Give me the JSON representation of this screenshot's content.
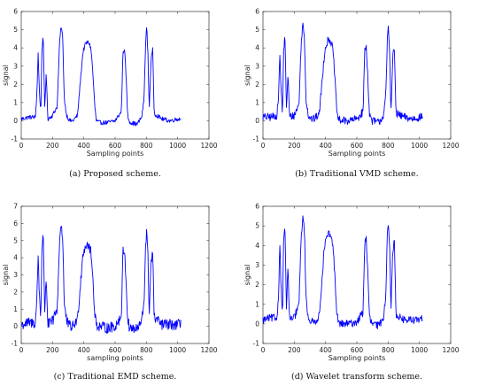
{
  "chart_data": [
    {
      "type": "line",
      "caption": "(a)  Proposed scheme.",
      "xlabel": "Sampling points",
      "ylabel": "signal",
      "xlim": [
        0,
        1200
      ],
      "ylim": [
        -1,
        6
      ],
      "xticks": [
        "0",
        "200",
        "400",
        "600",
        "800",
        "1000",
        "1200"
      ],
      "yticks": [
        "-1",
        "0",
        "1",
        "2",
        "3",
        "4",
        "5",
        "6"
      ],
      "grid": false,
      "color": "#0000ff",
      "noise": 0.12,
      "series": [
        {
          "x": [
            0,
            50,
            90,
            100,
            108,
            115,
            125,
            132,
            140,
            150,
            160,
            170,
            200,
            230,
            245,
            255,
            265,
            275,
            290,
            310,
            330,
            360,
            380,
            395,
            410,
            420,
            432,
            445,
            455,
            470,
            480,
            500,
            550,
            600,
            640,
            650,
            660,
            670,
            680,
            690,
            700,
            740,
            770,
            785,
            795,
            802,
            810,
            818,
            830,
            840,
            850,
            900,
            950,
            1000,
            1020
          ],
          "y": [
            0.1,
            0.2,
            0.2,
            1.5,
            3.7,
            1.8,
            0.4,
            3.9,
            4.6,
            0.8,
            2.6,
            0.1,
            0.3,
            0.8,
            4.3,
            5.2,
            4.6,
            1.2,
            0.3,
            0.0,
            0.0,
            0.3,
            2.4,
            3.8,
            4.2,
            4.3,
            4.3,
            4.0,
            3.0,
            0.8,
            0.0,
            -0.1,
            -0.1,
            0.0,
            0.5,
            3.7,
            4.0,
            2.5,
            0.3,
            0.0,
            -0.1,
            -0.2,
            0.2,
            1.2,
            4.3,
            5.2,
            3.6,
            0.6,
            3.4,
            3.9,
            0.4,
            0.1,
            0.0,
            0.1,
            0.1
          ]
        }
      ]
    },
    {
      "type": "line",
      "caption": "(b)  Traditional VMD scheme.",
      "xlabel": "Sampling points",
      "ylabel": "signal",
      "xlim": [
        0,
        1200
      ],
      "ylim": [
        -1,
        6
      ],
      "xticks": [
        "0",
        "200",
        "400",
        "600",
        "800",
        "1000",
        "1200"
      ],
      "yticks": [
        "-1",
        "0",
        "1",
        "2",
        "3",
        "4",
        "5",
        "6"
      ],
      "grid": false,
      "color": "#0000ff",
      "noise": 0.22,
      "series": [
        {
          "x": [
            0,
            50,
            90,
            100,
            108,
            115,
            125,
            132,
            140,
            150,
            160,
            170,
            200,
            230,
            245,
            255,
            265,
            275,
            290,
            310,
            330,
            360,
            380,
            395,
            410,
            420,
            432,
            445,
            455,
            470,
            480,
            500,
            550,
            600,
            640,
            650,
            660,
            670,
            680,
            690,
            700,
            740,
            770,
            785,
            795,
            802,
            810,
            818,
            830,
            840,
            850,
            900,
            950,
            1000,
            1020
          ],
          "y": [
            0.2,
            0.2,
            0.3,
            1.5,
            3.6,
            1.8,
            0.4,
            3.9,
            4.6,
            0.8,
            2.5,
            0.2,
            0.3,
            0.9,
            4.4,
            5.3,
            4.6,
            1.2,
            0.3,
            0.1,
            0.1,
            0.4,
            2.4,
            3.9,
            4.3,
            4.5,
            4.4,
            4.0,
            3.0,
            0.8,
            0.1,
            0.0,
            0.0,
            0.1,
            0.5,
            3.8,
            4.1,
            2.5,
            0.4,
            0.1,
            0.0,
            -0.1,
            0.3,
            1.3,
            4.4,
            5.2,
            3.6,
            0.6,
            3.5,
            4.0,
            0.4,
            0.2,
            0.1,
            0.2,
            0.2
          ]
        }
      ]
    },
    {
      "type": "line",
      "caption": "(c)  Traditional EMD scheme.",
      "xlabel": "sampling points",
      "ylabel": "signal",
      "xlim": [
        0,
        1200
      ],
      "ylim": [
        -1,
        7
      ],
      "xticks": [
        "0",
        "200",
        "400",
        "600",
        "800",
        "1000",
        "1200"
      ],
      "yticks": [
        "-1",
        "0",
        "1",
        "2",
        "3",
        "4",
        "5",
        "6",
        "7"
      ],
      "grid": false,
      "color": "#0000ff",
      "noise": 0.32,
      "series": [
        {
          "x": [
            0,
            50,
            90,
            100,
            108,
            115,
            125,
            132,
            140,
            150,
            160,
            170,
            200,
            230,
            245,
            255,
            265,
            275,
            290,
            310,
            330,
            360,
            380,
            395,
            410,
            420,
            432,
            445,
            455,
            470,
            480,
            500,
            550,
            600,
            640,
            650,
            660,
            670,
            680,
            690,
            700,
            740,
            770,
            785,
            795,
            802,
            810,
            818,
            830,
            840,
            850,
            900,
            950,
            1000,
            1020
          ],
          "y": [
            0.1,
            0.2,
            0.2,
            1.6,
            4.2,
            2.0,
            0.5,
            4.5,
            5.4,
            1.0,
            2.9,
            0.1,
            0.3,
            1.0,
            5.0,
            6.0,
            5.2,
            1.3,
            0.3,
            0.0,
            0.0,
            0.4,
            2.7,
            4.3,
            4.7,
            4.8,
            4.7,
            4.3,
            3.2,
            0.8,
            0.1,
            0.0,
            -0.1,
            0.0,
            0.6,
            4.3,
            4.5,
            2.7,
            0.4,
            0.0,
            -0.1,
            -0.2,
            0.3,
            1.4,
            4.8,
            5.5,
            4.0,
            0.7,
            3.9,
            4.3,
            0.5,
            0.1,
            0.1,
            0.1,
            0.1
          ]
        }
      ]
    },
    {
      "type": "line",
      "caption": "(d)  Wavelet transform scheme.",
      "xlabel": "Sampling points",
      "ylabel": "signal",
      "xlim": [
        0,
        1200
      ],
      "ylim": [
        -1,
        6
      ],
      "xticks": [
        "0",
        "200",
        "400",
        "600",
        "800",
        "1000",
        "1200"
      ],
      "yticks": [
        "-1",
        "0",
        "1",
        "2",
        "3",
        "4",
        "5",
        "6"
      ],
      "grid": false,
      "color": "#0000ff",
      "noise": 0.2,
      "series": [
        {
          "x": [
            0,
            50,
            90,
            100,
            108,
            115,
            125,
            132,
            140,
            150,
            160,
            170,
            200,
            230,
            245,
            255,
            265,
            275,
            290,
            310,
            330,
            360,
            380,
            395,
            410,
            420,
            432,
            445,
            455,
            470,
            480,
            500,
            550,
            600,
            640,
            650,
            660,
            670,
            680,
            690,
            700,
            740,
            770,
            785,
            795,
            802,
            810,
            818,
            830,
            840,
            850,
            900,
            950,
            1000,
            1020
          ],
          "y": [
            0.2,
            0.3,
            0.3,
            1.6,
            4.1,
            2.0,
            0.5,
            4.3,
            5.0,
            0.9,
            2.8,
            0.2,
            0.3,
            1.0,
            4.6,
            5.4,
            4.8,
            1.3,
            0.3,
            0.1,
            0.1,
            0.4,
            2.6,
            4.1,
            4.4,
            4.6,
            4.5,
            4.1,
            3.1,
            0.8,
            0.1,
            0.0,
            0.0,
            0.1,
            0.6,
            4.1,
            4.4,
            2.6,
            0.4,
            0.1,
            0.0,
            -0.1,
            0.3,
            1.4,
            4.7,
            5.3,
            3.9,
            0.7,
            3.8,
            4.2,
            0.5,
            0.2,
            0.2,
            0.2,
            0.3
          ]
        }
      ]
    }
  ]
}
